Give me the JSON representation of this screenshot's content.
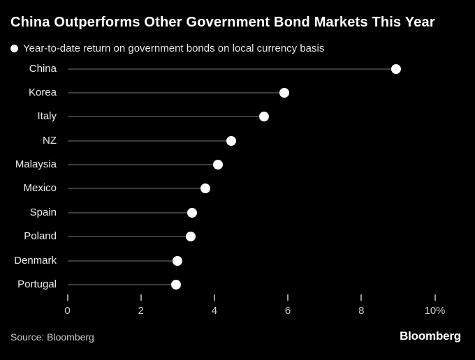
{
  "header": {
    "title": "China Outperforms Other Government Bond Markets This Year"
  },
  "legend": {
    "marker": "filled-circle",
    "label": "Year-to-date return on government bonds on local currency basis"
  },
  "chart_data": {
    "type": "bar",
    "variant": "lollipop-dot",
    "orientation": "horizontal",
    "title": "China Outperforms Other Government Bond Markets This Year",
    "subtitle": "Year-to-date return on government bonds on local currency basis",
    "categories": [
      "China",
      "Korea",
      "Italy",
      "NZ",
      "Malaysia",
      "Mexico",
      "Spain",
      "Poland",
      "Denmark",
      "Portugal"
    ],
    "values": [
      8.95,
      5.9,
      5.35,
      4.45,
      4.1,
      3.75,
      3.4,
      3.35,
      3.0,
      2.95
    ],
    "unit": "%",
    "xlabel": "",
    "ylabel": "",
    "xlim": [
      0,
      10
    ],
    "x_ticks": [
      0,
      2,
      4,
      6,
      8,
      10
    ],
    "x_tick_labels": [
      "0",
      "2",
      "4",
      "6",
      "8",
      "10%"
    ],
    "grid": false,
    "legend_position": "top-left"
  },
  "footer": {
    "source": "Source: Bloomberg",
    "logo": "Bloomberg"
  },
  "colors": {
    "background": "#000000",
    "title": "#ffffff",
    "legend_text": "#e6e6e6",
    "stem_line": "#3c3c3c",
    "dot": "#ffffff",
    "category_label": "#ededed",
    "tick_mark": "#9a9a9a",
    "tick_label": "#cbcbcb",
    "source_text": "#cbcbcb",
    "logo": "#ffffff"
  }
}
